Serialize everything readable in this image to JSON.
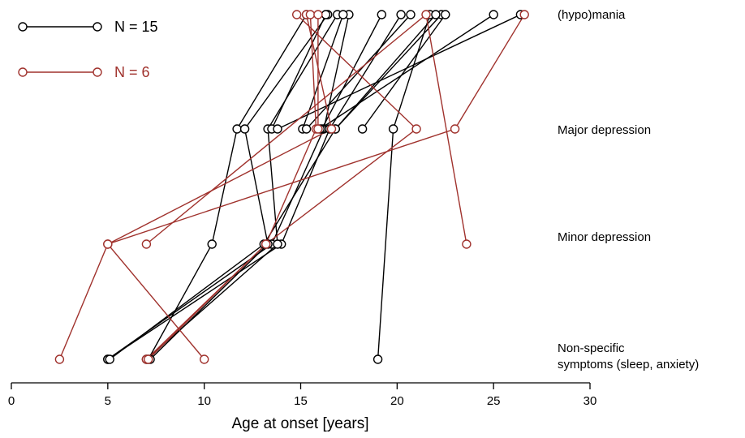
{
  "chart_data": {
    "type": "line",
    "xlabel": "Age at onset [years]",
    "xlim": [
      0,
      30
    ],
    "x_ticks": [
      "0",
      "5",
      "10",
      "15",
      "20",
      "25",
      "30"
    ],
    "ylabel": "",
    "levels": [
      "Non-specific symptoms (sleep, anxiety)",
      "Minor depression",
      "Major depression",
      "(hypo)mania"
    ],
    "level_lines": {
      "nonspecific": [
        "Non-specific",
        "symptoms (sleep, anxiety)"
      ],
      "minor": [
        "Minor depression"
      ],
      "major": [
        "Major depression"
      ],
      "mania": [
        "(hypo)mania"
      ]
    },
    "grid": false,
    "legend_position": "top-left",
    "series": [
      {
        "name": "N = 15",
        "color": "#000000",
        "trajectories": [
          [
            [
              5.0,
              0
            ],
            [
              13.5,
              1
            ],
            [
              16.2,
              2
            ],
            [
              17.5,
              3
            ]
          ],
          [
            [
              5.0,
              0
            ],
            [
              14.0,
              1
            ],
            [
              16.5,
              2
            ],
            [
              20.2,
              3
            ]
          ],
          [
            [
              5.1,
              0
            ],
            [
              13.1,
              1
            ],
            [
              16.8,
              2
            ],
            [
              22.3,
              3
            ]
          ],
          [
            [
              7.1,
              0
            ],
            [
              10.4,
              1
            ],
            [
              11.7,
              2
            ],
            [
              15.3,
              3
            ]
          ],
          [
            [
              7.2,
              0
            ],
            [
              13.3,
              1
            ],
            [
              12.1,
              2
            ],
            [
              16.4,
              3
            ]
          ],
          [
            [
              7.0,
              0
            ],
            [
              13.8,
              1
            ],
            [
              13.3,
              2
            ],
            [
              16.9,
              3
            ]
          ],
          [
            [
              19.0,
              0
            ],
            [
              19.8,
              2
            ],
            [
              21.7,
              3
            ]
          ],
          [
            [
              15.1,
              2
            ],
            [
              17.2,
              3
            ]
          ],
          [
            [
              16.1,
              2
            ],
            [
              19.2,
              3
            ]
          ],
          [
            [
              13.5,
              2
            ],
            [
              16.3,
              3
            ]
          ],
          [
            [
              15.3,
              2
            ],
            [
              20.7,
              3
            ]
          ],
          [
            [
              16.8,
              2
            ],
            [
              22.0,
              3
            ]
          ],
          [
            [
              18.2,
              2
            ],
            [
              22.5,
              3
            ]
          ],
          [
            [
              16.0,
              2
            ],
            [
              25.0,
              3
            ]
          ],
          [
            [
              13.8,
              2
            ],
            [
              26.4,
              3
            ]
          ]
        ]
      },
      {
        "name": "N = 6",
        "color": "#a0322d",
        "trajectories": [
          [
            [
              2.5,
              0
            ],
            [
              5.0,
              1
            ],
            [
              23.0,
              2
            ],
            [
              26.6,
              3
            ]
          ],
          [
            [
              7.0,
              0
            ],
            [
              13.2,
              1
            ],
            [
              21.0,
              2
            ],
            [
              14.8,
              3
            ]
          ],
          [
            [
              10.0,
              0
            ],
            [
              5.0,
              1
            ],
            [
              16.6,
              2
            ],
            [
              15.3,
              3
            ]
          ],
          [
            [
              7.1,
              0
            ],
            [
              13.2,
              1
            ],
            [
              15.8,
              2
            ],
            [
              15.5,
              3
            ]
          ],
          [
            [
              15.9,
              2
            ],
            [
              15.9,
              3
            ]
          ],
          [
            [
              7.0,
              1
            ],
            [
              21.5,
              3
            ],
            [
              23.6,
              1
            ]
          ]
        ]
      }
    ]
  }
}
